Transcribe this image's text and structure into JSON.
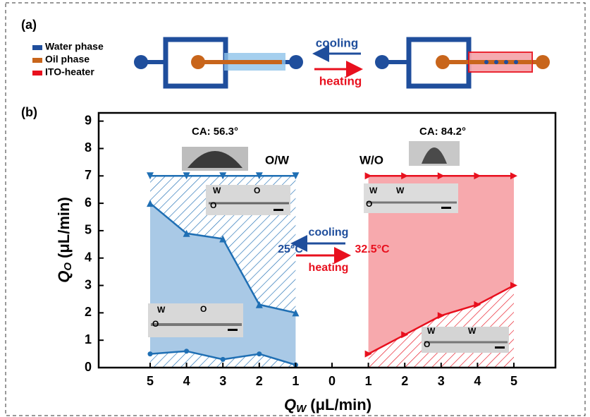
{
  "panel_a": {
    "label": "(a)",
    "legend": [
      "Water phase",
      "Oil phase",
      "ITO-heater"
    ],
    "legend_colors": [
      "#1f4e9c",
      "#c8651b",
      "#e8101e"
    ],
    "cooling": "cooling",
    "heating": "heating"
  },
  "chart_data": {
    "type": "area",
    "panel_label": "(b)",
    "xlabel": {
      "main": "Q",
      "sub": "W",
      "unit": "(μL/min)"
    },
    "ylabel": {
      "main": "Q",
      "sub": "O",
      "unit": "(μL/min)"
    },
    "categories": [
      "5",
      "4",
      "3",
      "2",
      "1",
      "0",
      "1",
      "2",
      "3",
      "4",
      "5"
    ],
    "series": [
      {
        "color": "#1f6fb4",
        "marker": "triangle-down",
        "values": [
          7,
          7,
          7,
          7,
          7,
          null,
          null,
          null,
          null,
          null,
          null
        ]
      },
      {
        "color": "#1f6fb4",
        "marker": "triangle-up",
        "values": [
          6.0,
          4.9,
          4.7,
          2.3,
          2.0,
          null,
          null,
          null,
          null,
          null,
          null
        ]
      },
      {
        "color": "#1f6fb4",
        "marker": "circle",
        "values": [
          0.5,
          0.6,
          0.3,
          0.5,
          0.1,
          null,
          null,
          null,
          null,
          null,
          null
        ]
      },
      {
        "color": "#e8101e",
        "marker": "triangle-right",
        "values": [
          null,
          null,
          null,
          null,
          null,
          null,
          7,
          7,
          7,
          7,
          7
        ]
      },
      {
        "color": "#e8101e",
        "marker": "triangle-right",
        "values": [
          null,
          null,
          null,
          null,
          null,
          null,
          0.5,
          1.2,
          1.9,
          2.3,
          3.0
        ]
      }
    ],
    "ylim": [
      0,
      9.3
    ],
    "yticks": [
      0,
      1,
      2,
      3,
      4,
      5,
      6,
      7,
      8,
      9
    ],
    "annotations": [
      "CA: 56.3°",
      "O/W",
      "CA: 84.2°",
      "W/O",
      "cooling",
      "25°C",
      "32.5°C",
      "heating",
      "W",
      "O",
      "O",
      "W",
      "O",
      "O",
      "W",
      "O",
      "W",
      "W",
      "O",
      "W"
    ]
  }
}
